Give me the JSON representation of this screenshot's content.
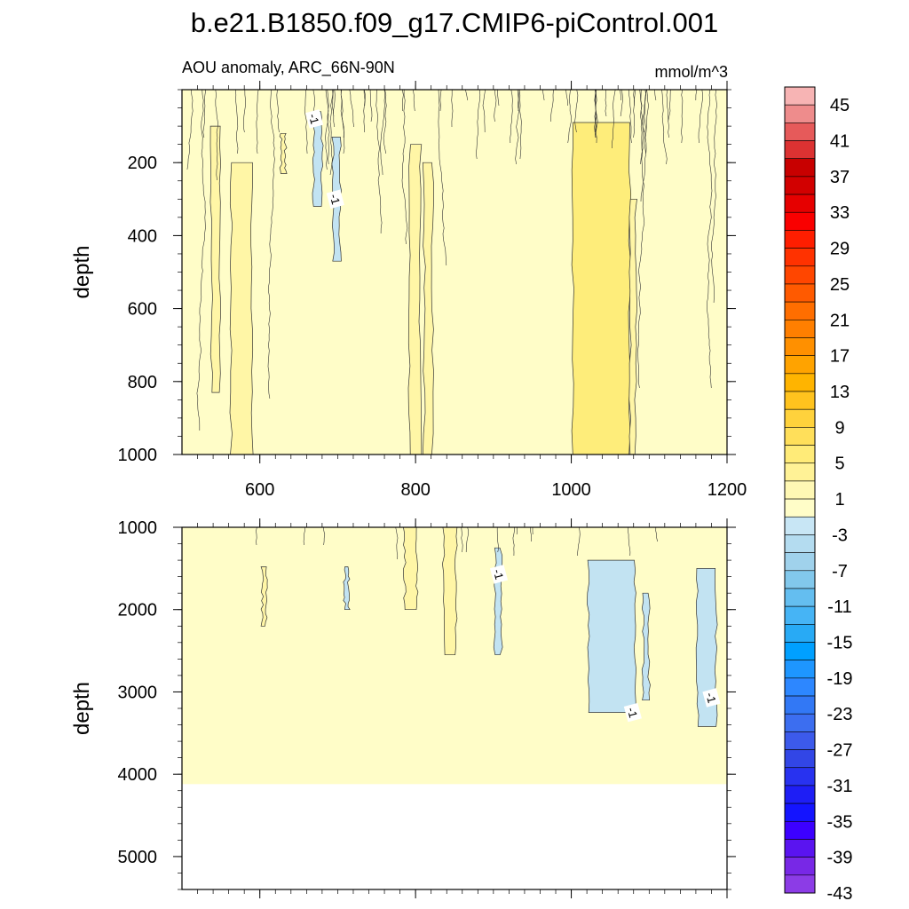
{
  "title": "b.e21.B1850.f09_g17.CMIP6-piControl.001",
  "subtitle_left": "AOU anomaly, ARC_66N-90N",
  "subtitle_right": "mmol/m^3",
  "colors": {
    "background_fill": "#fffdc8",
    "pos_fill_1": "#fff6a6",
    "pos_fill_2": "#feed7a",
    "neg_fill_1": "#c2e3f2",
    "missing": "#ffffff"
  },
  "chart_data": [
    {
      "type": "contour",
      "panel": "top",
      "ylabel": "depth",
      "xlabel": "",
      "xlim": [
        500,
        1200
      ],
      "ylim": [
        1000,
        0
      ],
      "xticks": [
        "600",
        "800",
        "1000",
        "1200"
      ],
      "yticks": [
        "200",
        "400",
        "600",
        "800",
        "1000"
      ],
      "ytick_values": [
        200,
        400,
        600,
        800,
        1000
      ],
      "xtick_values": [
        600,
        800,
        1000,
        1200
      ],
      "contour_labels": [
        "-1",
        "-1"
      ],
      "features": [
        {
          "kind": "pos",
          "x0": 1002,
          "x1": 1075,
          "ytop": 90,
          "ybot": 1000
        },
        {
          "kind": "pos",
          "x0": 563,
          "x1": 590,
          "ytop": 200,
          "ybot": 1000
        },
        {
          "kind": "pos",
          "x0": 792,
          "x1": 806,
          "ytop": 150,
          "ybot": 1000
        },
        {
          "kind": "pos",
          "x0": 811,
          "x1": 822,
          "ytop": 200,
          "ybot": 1000
        },
        {
          "kind": "pos",
          "x0": 1076,
          "x1": 1083,
          "ytop": 300,
          "ybot": 1000
        },
        {
          "kind": "pos",
          "x0": 538,
          "x1": 548,
          "ytop": 100,
          "ybot": 830
        },
        {
          "kind": "pos",
          "x0": 627,
          "x1": 633,
          "ytop": 120,
          "ybot": 230
        },
        {
          "kind": "neg",
          "x0": 669,
          "x1": 680,
          "ytop": 60,
          "ybot": 320
        },
        {
          "kind": "neg",
          "x0": 694,
          "x1": 703,
          "ytop": 130,
          "ybot": 470
        }
      ]
    },
    {
      "type": "contour",
      "panel": "bottom",
      "ylabel": "depth",
      "xlabel": "",
      "xlim": [
        500,
        1200
      ],
      "ylim": [
        5400,
        1000
      ],
      "yticks": [
        "1000",
        "2000",
        "3000",
        "4000",
        "5000"
      ],
      "ytick_values": [
        1000,
        2000,
        3000,
        4000,
        5000
      ],
      "xtick_values": [
        600,
        800,
        1000,
        1200
      ],
      "ocean_bottom": 4120,
      "contour_labels": [
        "-1",
        "-1",
        "-1"
      ],
      "features": [
        {
          "kind": "pos",
          "x0": 786,
          "x1": 802,
          "ytop": 1000,
          "ybot": 2000
        },
        {
          "kind": "pos",
          "x0": 836,
          "x1": 852,
          "ytop": 1000,
          "ybot": 2550
        },
        {
          "kind": "pos",
          "x0": 603,
          "x1": 608,
          "ytop": 1480,
          "ybot": 2200
        },
        {
          "kind": "neg",
          "x0": 1022,
          "x1": 1082,
          "ytop": 1400,
          "ybot": 3250
        },
        {
          "kind": "neg",
          "x0": 1092,
          "x1": 1100,
          "ytop": 1800,
          "ybot": 3100
        },
        {
          "kind": "neg",
          "x0": 1162,
          "x1": 1186,
          "ytop": 1500,
          "ybot": 3420
        },
        {
          "kind": "neg",
          "x0": 902,
          "x1": 910,
          "ytop": 1250,
          "ybot": 2550
        },
        {
          "kind": "neg",
          "x0": 709,
          "x1": 714,
          "ytop": 1480,
          "ybot": 2000
        }
      ]
    }
  ],
  "colorbar": {
    "labels": [
      "45",
      "41",
      "37",
      "33",
      "29",
      "25",
      "21",
      "17",
      "13",
      "9",
      "5",
      "1",
      "-3",
      "-7",
      "-11",
      "-15",
      "-19",
      "-23",
      "-27",
      "-31",
      "-35",
      "-39",
      "-43"
    ],
    "colors": [
      "#f7b4b4",
      "#ee8c8c",
      "#e65a5a",
      "#dc3232",
      "#c80000",
      "#d20000",
      "#e60000",
      "#fa0000",
      "#ff1e00",
      "#ff3200",
      "#ff4600",
      "#ff5a00",
      "#ff6e00",
      "#ff7f00",
      "#ff9000",
      "#ffa300",
      "#ffb400",
      "#ffc31e",
      "#ffd23c",
      "#ffdf5a",
      "#ffeb78",
      "#fff296",
      "#fff8b4",
      "#fffdc8",
      "#c8e6f5",
      "#b4dcf0",
      "#a0d2ec",
      "#82c8ec",
      "#64bef0",
      "#46b4f5",
      "#28aaf5",
      "#00a0ff",
      "#1e96ff",
      "#2d87ff",
      "#3278f5",
      "#3c6ef0",
      "#3c5aeb",
      "#3246e6",
      "#2832f0",
      "#1e1ef5",
      "#1414ff",
      "#3c00ff",
      "#5a14f0",
      "#7828e6",
      "#8c3ce6"
    ]
  }
}
